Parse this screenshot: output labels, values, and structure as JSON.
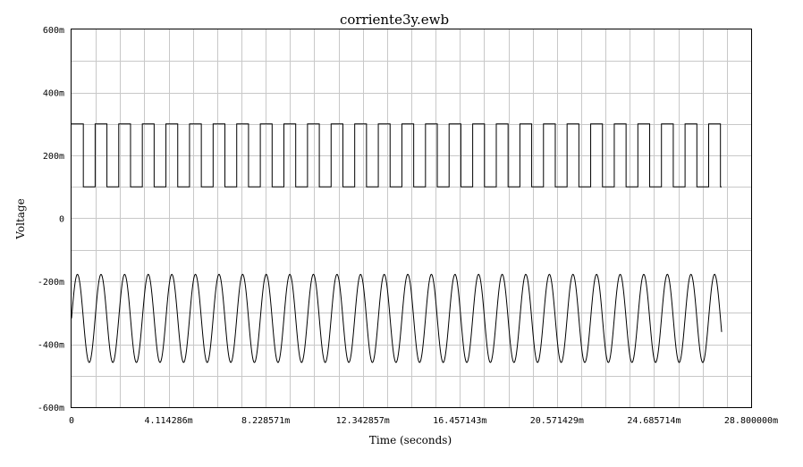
{
  "chart_data": {
    "type": "line",
    "title": "corriente3y.ewb",
    "xlabel": "Time (seconds)",
    "ylabel": "Voltage",
    "xlim": [
      0,
      0.0288
    ],
    "ylim": [
      -0.6,
      0.6
    ],
    "grid": true,
    "x_ticks": [
      {
        "value": 0,
        "label": "0"
      },
      {
        "value": 0.004114286,
        "label": "4.114286m"
      },
      {
        "value": 0.008228571,
        "label": "8.228571m"
      },
      {
        "value": 0.012342857,
        "label": "12.342857m"
      },
      {
        "value": 0.016457143,
        "label": "16.457143m"
      },
      {
        "value": 0.020571429,
        "label": "20.571429m"
      },
      {
        "value": 0.024685714,
        "label": "24.685714m"
      },
      {
        "value": 0.0288,
        "label": "28.800000m"
      }
    ],
    "y_ticks": [
      {
        "value": 0.6,
        "label": "600m"
      },
      {
        "value": 0.4,
        "label": "400m"
      },
      {
        "value": 0.2,
        "label": "200m"
      },
      {
        "value": 0,
        "label": "0"
      },
      {
        "value": -0.2,
        "label": "-200m"
      },
      {
        "value": -0.4,
        "label": "-400m"
      },
      {
        "value": -0.6,
        "label": "-600m"
      }
    ],
    "series": [
      {
        "shape": "square",
        "high": 0.3,
        "low": 0.1,
        "period": 0.001,
        "start_high": true,
        "t_end": 0.02755
      },
      {
        "shape": "sine",
        "offset": -0.318,
        "amplitude": 0.14,
        "period": 0.001,
        "t_peak": 0.00025,
        "t_end": 0.02755
      }
    ]
  }
}
